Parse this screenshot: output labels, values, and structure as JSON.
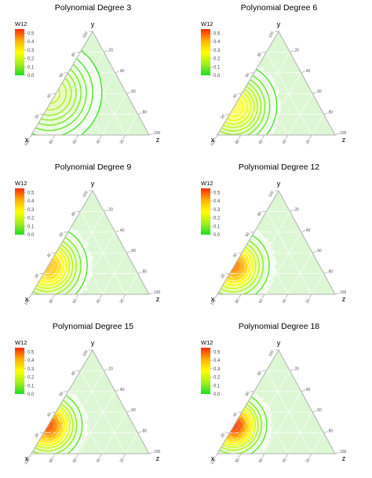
{
  "chart_data": [
    {
      "type": "ternary-contour",
      "title": "Polynomial Degree 3",
      "legend": {
        "title": "W12",
        "ticks": [
          "0.5",
          "0.4",
          "0.3",
          "0.2",
          "0.1",
          "0.0"
        ],
        "range": [
          0,
          0.55
        ]
      },
      "axes": {
        "top": "y",
        "left": "x",
        "right": "z",
        "ticks": [
          "20",
          "40",
          "60",
          "80",
          "100"
        ]
      },
      "peak": {
        "x": 70,
        "y": 45,
        "z": 0
      },
      "peak_value": 0.18,
      "spread": 0.3,
      "contour_levels": [
        0.02,
        0.04,
        0.06,
        0.08,
        0.1,
        0.12,
        0.14,
        0.16
      ]
    },
    {
      "type": "ternary-contour",
      "title": "Polynomial Degree 6",
      "legend": {
        "title": "W12",
        "ticks": [
          "0.5",
          "0.4",
          "0.3",
          "0.2",
          "0.1",
          "0.0"
        ],
        "range": [
          0,
          0.55
        ]
      },
      "axes": {
        "top": "y",
        "left": "x",
        "right": "z",
        "ticks": [
          "20",
          "40",
          "60",
          "80",
          "100"
        ]
      },
      "peak": {
        "x": 73,
        "y": 27,
        "z": 0
      },
      "peak_value": 0.3,
      "spread": 0.24,
      "contour_levels": [
        0.03,
        0.06,
        0.09,
        0.12,
        0.15,
        0.18,
        0.21,
        0.24,
        0.27
      ]
    },
    {
      "type": "ternary-contour",
      "title": "Polynomial Degree 9",
      "legend": {
        "title": "W12",
        "ticks": [
          "0.5",
          "0.4",
          "0.3",
          "0.2",
          "0.1",
          "0.0"
        ],
        "range": [
          0,
          0.55
        ]
      },
      "axes": {
        "top": "y",
        "left": "x",
        "right": "z",
        "ticks": [
          "20",
          "40",
          "60",
          "80",
          "100"
        ]
      },
      "peak": {
        "x": 73,
        "y": 27,
        "z": 0
      },
      "peak_value": 0.4,
      "spread": 0.22,
      "contour_levels": [
        0.04,
        0.08,
        0.12,
        0.16,
        0.2,
        0.24,
        0.28,
        0.32,
        0.36
      ]
    },
    {
      "type": "ternary-contour",
      "title": "Polynomial Degree 12",
      "legend": {
        "title": "W12",
        "ticks": [
          "0.5",
          "0.4",
          "0.3",
          "0.2",
          "0.1",
          "0.0"
        ],
        "range": [
          0,
          0.55
        ]
      },
      "axes": {
        "top": "y",
        "left": "x",
        "right": "z",
        "ticks": [
          "20",
          "40",
          "60",
          "80",
          "100"
        ]
      },
      "peak": {
        "x": 73,
        "y": 27,
        "z": 0
      },
      "peak_value": 0.47,
      "spread": 0.2,
      "contour_levels": [
        0.05,
        0.1,
        0.15,
        0.2,
        0.25,
        0.3,
        0.35,
        0.4,
        0.45
      ]
    },
    {
      "type": "ternary-contour",
      "title": "Polynomial Degree 15",
      "legend": {
        "title": "W12",
        "ticks": [
          "0.5",
          "0.4",
          "0.3",
          "0.2",
          "0.1",
          "0.0"
        ],
        "range": [
          0,
          0.55
        ]
      },
      "axes": {
        "top": "y",
        "left": "x",
        "right": "z",
        "ticks": [
          "20",
          "40",
          "60",
          "80",
          "100"
        ]
      },
      "peak": {
        "x": 73,
        "y": 27,
        "z": 0
      },
      "peak_value": 0.52,
      "spread": 0.19,
      "contour_levels": [
        0.05,
        0.1,
        0.15,
        0.2,
        0.25,
        0.3,
        0.35,
        0.4,
        0.45,
        0.5
      ]
    },
    {
      "type": "ternary-contour",
      "title": "Polynomial Degree 18",
      "legend": {
        "title": "W12",
        "ticks": [
          "0.5",
          "0.4",
          "0.3",
          "0.2",
          "0.1",
          "0.0"
        ],
        "range": [
          0,
          0.55
        ]
      },
      "axes": {
        "top": "y",
        "left": "x",
        "right": "z",
        "ticks": [
          "20",
          "40",
          "60",
          "80",
          "100"
        ]
      },
      "peak": {
        "x": 73,
        "y": 27,
        "z": 0
      },
      "peak_value": 0.55,
      "spread": 0.18,
      "contour_levels": [
        0.05,
        0.1,
        0.15,
        0.2,
        0.25,
        0.3,
        0.35,
        0.4,
        0.45,
        0.5
      ]
    }
  ],
  "colors": {
    "background_fill": "#ddf7d4",
    "frame": "#b0b0b0",
    "gradient": [
      "#22dd22",
      "#a6f01a",
      "#ffff00",
      "#ffb000",
      "#ff2a00"
    ]
  }
}
